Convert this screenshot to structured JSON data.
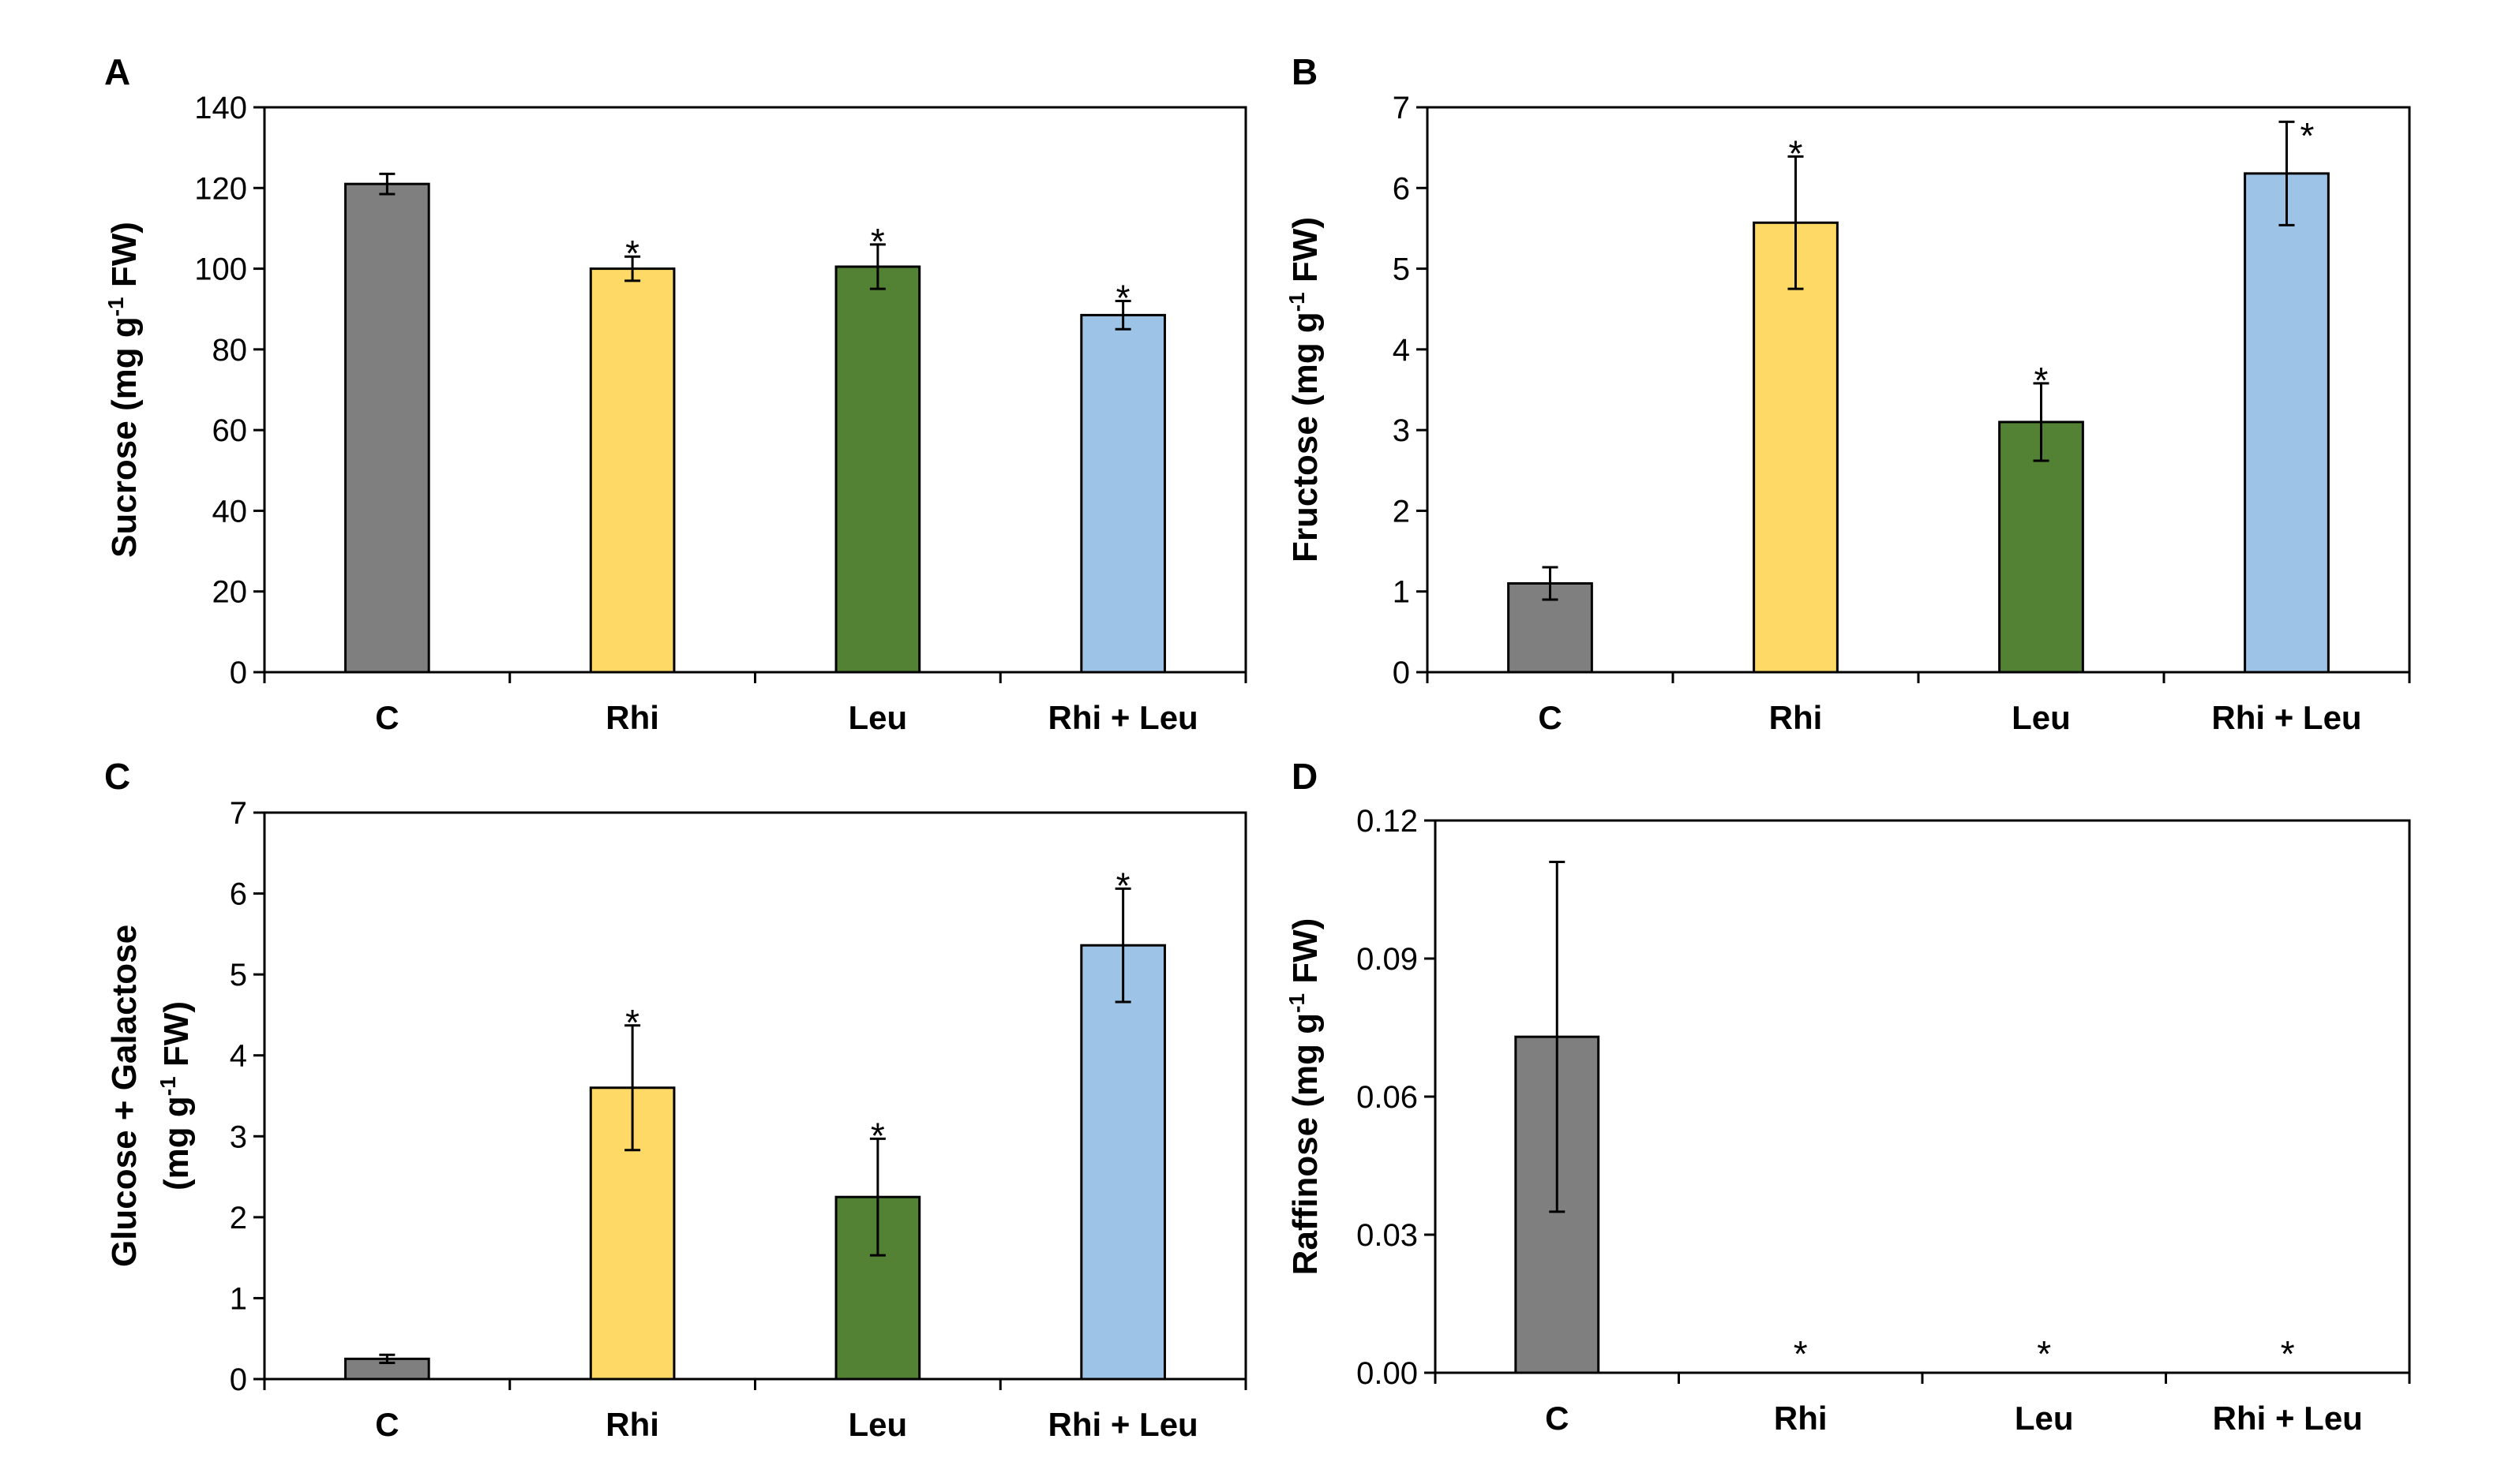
{
  "colors": {
    "C": "#7f7f7f",
    "Rhi": "#ffd966",
    "Leu": "#548235",
    "Rhi + Leu": "#9dc3e6"
  },
  "chart_data": [
    {
      "panel": "A",
      "type": "bar",
      "categories": [
        "C",
        "Rhi",
        "Leu",
        "Rhi + Leu"
      ],
      "values": [
        121,
        100,
        100.5,
        88.5
      ],
      "errors": [
        2.5,
        3,
        5.5,
        3.5
      ],
      "significant": [
        false,
        true,
        true,
        true
      ],
      "ylabel": {
        "pre": "Sucrose (mg g",
        "sup": "-1",
        "post": " FW)"
      },
      "ylim": [
        0,
        140
      ],
      "yticks": [
        "0",
        "20",
        "40",
        "60",
        "80",
        "100",
        "120",
        "140"
      ]
    },
    {
      "panel": "B",
      "type": "bar",
      "categories": [
        "C",
        "Rhi",
        "Leu",
        "Rhi + Leu"
      ],
      "values": [
        1.1,
        5.57,
        3.1,
        6.18
      ],
      "errors": [
        0.2,
        0.82,
        0.48,
        0.64
      ],
      "significant": [
        false,
        true,
        true,
        true
      ],
      "ylabel": {
        "pre": "Fructose (mg g",
        "sup": "-1",
        "post": " FW)"
      },
      "ylim": [
        0,
        7
      ],
      "yticks": [
        "0",
        "1",
        "2",
        "3",
        "4",
        "5",
        "6",
        "7"
      ]
    },
    {
      "panel": "C",
      "type": "bar",
      "categories": [
        "C",
        "Rhi",
        "Leu",
        "Rhi + Leu"
      ],
      "values": [
        0.25,
        3.6,
        2.25,
        5.36
      ],
      "errors": [
        0.05,
        0.77,
        0.72,
        0.7
      ],
      "significant": [
        false,
        true,
        true,
        true
      ],
      "ylabel_line1": "Glucose + Galactose",
      "ylabel": {
        "pre": "(mg g",
        "sup": "-1",
        "post": " FW)"
      },
      "ylim": [
        0,
        7
      ],
      "yticks": [
        "0",
        "1",
        "2",
        "3",
        "4",
        "5",
        "6",
        "7"
      ]
    },
    {
      "panel": "D",
      "type": "bar",
      "categories": [
        "C",
        "Rhi",
        "Leu",
        "Rhi + Leu"
      ],
      "values": [
        0.073,
        0,
        0,
        0
      ],
      "errors": [
        0.038,
        0,
        0,
        0
      ],
      "significant": [
        false,
        true,
        true,
        true
      ],
      "ylabel": {
        "pre": "Raffinose (mg g",
        "sup": "-1",
        "post": " FW)"
      },
      "ylim": [
        0,
        0.12
      ],
      "yticks": [
        "0.00",
        "0.03",
        "0.06",
        "0.09",
        "0.12"
      ]
    }
  ],
  "sig_marker": "*"
}
